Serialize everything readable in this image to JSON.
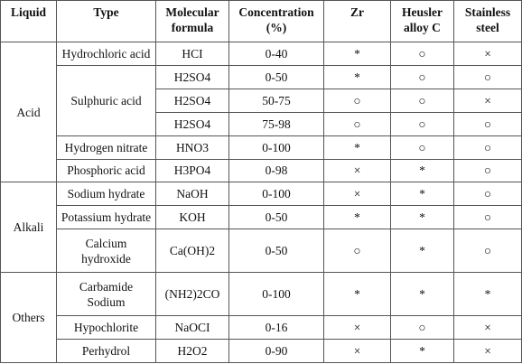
{
  "table": {
    "header": [
      "Liquid",
      "Type",
      "Molecular formula",
      "Concentration (%)",
      "Zr",
      "Heusler alloy C",
      "Stainless steel"
    ],
    "groups": [
      {
        "liquid": "Acid",
        "types": [
          {
            "type": "Hydrochloric acid",
            "rows": [
              [
                "HCI",
                "0-40",
                "*",
                "○",
                "×"
              ]
            ]
          },
          {
            "type": "Sulphuric acid",
            "rows": [
              [
                "H2SO4",
                "0-50",
                "*",
                "○",
                "○"
              ],
              [
                "H2SO4",
                "50-75",
                "○",
                "○",
                "×"
              ],
              [
                "H2SO4",
                "75-98",
                "○",
                "○",
                "○"
              ]
            ]
          },
          {
            "type": "Hydrogen nitrate",
            "rows": [
              [
                "HNO3",
                "0-100",
                "*",
                "○",
                "○"
              ]
            ]
          },
          {
            "type": "Phosphoric acid",
            "rows": [
              [
                "H3PO4",
                "0-98",
                "×",
                "*",
                "○"
              ]
            ]
          }
        ]
      },
      {
        "liquid": "Alkali",
        "types": [
          {
            "type": "Sodium hydrate",
            "rows": [
              [
                "NaOH",
                "0-100",
                "×",
                "*",
                "○"
              ]
            ]
          },
          {
            "type": "Potassium hydrate",
            "rows": [
              [
                "KOH",
                "0-50",
                "*",
                "*",
                "○"
              ]
            ]
          },
          {
            "type": "Calcium hydroxide",
            "rows": [
              [
                "Ca(OH)2",
                "0-50",
                "○",
                "*",
                "○"
              ]
            ]
          }
        ]
      },
      {
        "liquid": "Others",
        "types": [
          {
            "type": "Carbamide Sodium",
            "rows": [
              [
                "(NH2)2CO",
                "0-100",
                "*",
                "*",
                "*"
              ]
            ]
          },
          {
            "type": "Hypochlorite",
            "rows": [
              [
                "NaOCI",
                "0-16",
                "×",
                "○",
                "×"
              ]
            ]
          },
          {
            "type": "Perhydrol",
            "rows": [
              [
                "H2O2",
                "0-90",
                "×",
                "*",
                "×"
              ]
            ]
          }
        ]
      }
    ]
  }
}
